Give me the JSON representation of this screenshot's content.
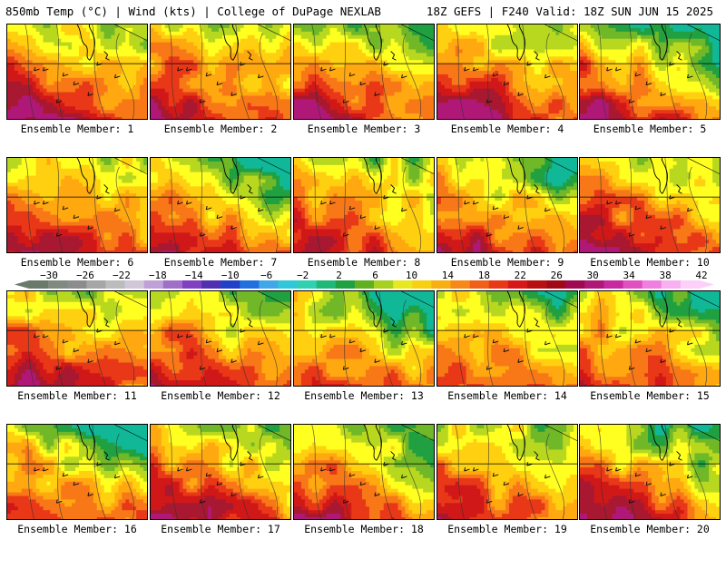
{
  "header": {
    "left_title": "850mb Temp (°C) | Wind (kts) | College of DuPage NEXLAB",
    "right_title": "18Z GEFS | F240 Valid: 18Z SUN JUN 15 2025"
  },
  "members": [
    {
      "label": "Ensemble Member: 1",
      "hot": 0.85,
      "cool": 0.15
    },
    {
      "label": "Ensemble Member: 2",
      "hot": 0.75,
      "cool": 0.15
    },
    {
      "label": "Ensemble Member: 3",
      "hot": 0.7,
      "cool": 0.6
    },
    {
      "label": "Ensemble Member: 4",
      "hot": 0.85,
      "cool": 0.35
    },
    {
      "label": "Ensemble Member: 5",
      "hot": 0.75,
      "cool": 0.85
    },
    {
      "label": "Ensemble Member: 6",
      "hot": 0.65,
      "cool": 0.1
    },
    {
      "label": "Ensemble Member: 7",
      "hot": 0.45,
      "cool": 0.95
    },
    {
      "label": "Ensemble Member: 8",
      "hot": 0.55,
      "cool": 0.3
    },
    {
      "label": "Ensemble Member: 9",
      "hot": 0.65,
      "cool": 0.8
    },
    {
      "label": "Ensemble Member: 10",
      "hot": 0.85,
      "cool": 0.25
    },
    {
      "label": "Ensemble Member: 11",
      "hot": 0.7,
      "cool": 0.35
    },
    {
      "label": "Ensemble Member: 12",
      "hot": 0.5,
      "cool": 0.5
    },
    {
      "label": "Ensemble Member: 13",
      "hot": 0.3,
      "cool": 0.9
    },
    {
      "label": "Ensemble Member: 14",
      "hot": 0.3,
      "cool": 0.55
    },
    {
      "label": "Ensemble Member: 15",
      "hot": 0.35,
      "cool": 0.7
    },
    {
      "label": "Ensemble Member: 16",
      "hot": 0.35,
      "cool": 0.75
    },
    {
      "label": "Ensemble Member: 17",
      "hot": 0.85,
      "cool": 0.4
    },
    {
      "label": "Ensemble Member: 18",
      "hot": 0.6,
      "cool": 0.55
    },
    {
      "label": "Ensemble Member: 19",
      "hot": 0.45,
      "cool": 0.25
    },
    {
      "label": "Ensemble Member: 20",
      "hot": 0.65,
      "cool": 0.75
    }
  ],
  "colorbar": {
    "ticks": [
      "-30",
      "-26",
      "-22",
      "-18",
      "-14",
      "-10",
      "-6",
      "-2",
      "2",
      "6",
      "10",
      "14",
      "18",
      "22",
      "26",
      "30",
      "34",
      "38",
      "42"
    ],
    "colors": [
      "#6a7a6a",
      "#808a80",
      "#8c8c8c",
      "#a6a6a6",
      "#bcbcbc",
      "#d0c8d8",
      "#c0a0d8",
      "#a070c8",
      "#8040c0",
      "#5030b0",
      "#2040c8",
      "#2070e0",
      "#40a8e8",
      "#30c8d8",
      "#30d0b0",
      "#20b878",
      "#20a040",
      "#60b020",
      "#a8d020",
      "#e8e820",
      "#f8d010",
      "#f8b010",
      "#f88818",
      "#f06018",
      "#e83818",
      "#d81818",
      "#b81010",
      "#a00818",
      "#a00850",
      "#b01878",
      "#c828a0",
      "#e050c0",
      "#f080e0",
      "#f8b0f0",
      "#fcd0f8"
    ]
  },
  "scale_colors": [
    "#10b898",
    "#20a040",
    "#70b828",
    "#b8d820",
    "#ffff20",
    "#ffd010",
    "#ffa810",
    "#f87818",
    "#e83818",
    "#d01818",
    "#a81830",
    "#b01878"
  ]
}
